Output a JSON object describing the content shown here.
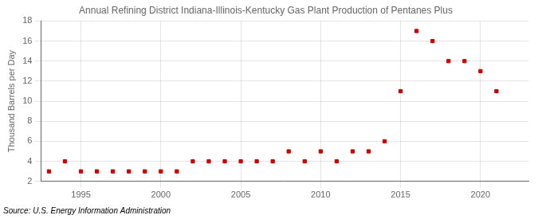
{
  "chart_data": {
    "type": "scatter",
    "title": "Annual Refining District Indiana-Illinois-Kentucky Gas Plant Production of Pentanes Plus",
    "ylabel": "Thousand Barrels per Day",
    "annotations": [
      "Source: U.S. Energy Information Administration"
    ],
    "x": [
      1993,
      1994,
      1995,
      1996,
      1997,
      1998,
      1999,
      2000,
      2001,
      2002,
      2003,
      2004,
      2005,
      2006,
      2007,
      2008,
      2009,
      2010,
      2011,
      2012,
      2013,
      2014,
      2015,
      2016,
      2017,
      2018,
      2019,
      2020,
      2021
    ],
    "values": [
      3,
      4,
      3,
      3,
      3,
      3,
      3,
      3,
      3,
      4,
      4,
      4,
      4,
      4,
      4,
      5,
      4,
      5,
      4,
      5,
      5,
      6,
      11,
      17,
      16,
      14,
      14,
      13,
      11
    ],
    "color": "#cc0000",
    "marker": "square",
    "xlim": [
      1992.5,
      2023
    ],
    "ylim": [
      2,
      18
    ],
    "xticks": [
      1995,
      2000,
      2005,
      2010,
      2015,
      2020
    ],
    "yticks": [
      2,
      4,
      6,
      8,
      10,
      12,
      14,
      16,
      18
    ],
    "grid": true
  }
}
